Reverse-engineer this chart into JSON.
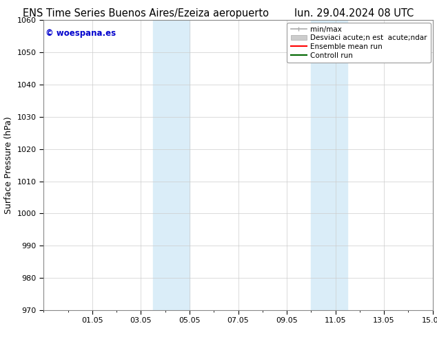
{
  "title_left": "ENS Time Series Buenos Aires/Ezeiza aeropuerto",
  "title_right": "lun. 29.04.2024 08 UTC",
  "ylabel": "Surface Pressure (hPa)",
  "ylim": [
    970,
    1060
  ],
  "yticks": [
    970,
    980,
    990,
    1000,
    1010,
    1020,
    1030,
    1040,
    1050,
    1060
  ],
  "xtick_labels": [
    "01.05",
    "03.05",
    "05.05",
    "07.05",
    "09.05",
    "11.05",
    "13.05",
    "15.05"
  ],
  "xtick_positions": [
    2,
    4,
    6,
    8,
    10,
    12,
    14,
    16
  ],
  "xlim": [
    0,
    16
  ],
  "shaded_regions": [
    {
      "start": 4.5,
      "end": 6.0
    },
    {
      "start": 11.0,
      "end": 12.5
    }
  ],
  "shaded_color": "#daedf8",
  "watermark": "© woespana.es",
  "watermark_color": "#0000cc",
  "legend_label_1": "min/max",
  "legend_label_2": "Desviaci acute;n est  acute;ndar",
  "legend_label_3": "Ensemble mean run",
  "legend_label_4": "Controll run",
  "legend_color_1": "#aaaaaa",
  "legend_color_2": "#cccccc",
  "legend_color_3": "#ff0000",
  "legend_color_4": "#006600",
  "bg_color": "#ffffff",
  "grid_color": "#cccccc",
  "title_fontsize": 10.5,
  "ylabel_fontsize": 9,
  "tick_fontsize": 8,
  "legend_fontsize": 7.5,
  "watermark_fontsize": 8.5
}
